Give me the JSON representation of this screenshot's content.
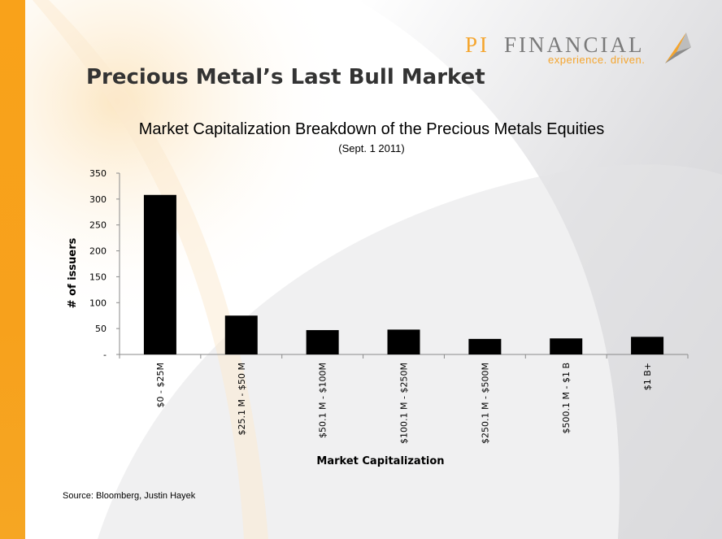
{
  "slide": {
    "title": "Precious Metal’s Last Bull Market",
    "source": "Source: Bloomberg, Justin Hayek"
  },
  "logo": {
    "name_part1": "PI",
    "name_part2": "FINANCIAL",
    "tagline": "experience. driven.",
    "icon": "pi-financial-logo-icon"
  },
  "colors": {
    "accent_orange": "#f9a21a",
    "bar": "#000000",
    "title_text": "#333333"
  },
  "chart_data": {
    "type": "bar",
    "title": "Market Capitalization Breakdown of the Precious Metals Equities",
    "subtitle": "(Sept. 1 2011)",
    "xlabel": "Market Capitalization",
    "ylabel": "# of issuers",
    "categories": [
      "$0 - $25M",
      "$25.1 M - $50 M",
      "$50.1 M - $100M",
      "$100.1 M - $250M",
      "$250.1 M - $500M",
      "$500.1 M - $1 B",
      "$1 B+"
    ],
    "values": [
      308,
      75,
      47,
      48,
      30,
      31,
      34
    ],
    "ylim": [
      0,
      350
    ],
    "yticks": [
      0,
      50,
      100,
      150,
      200,
      250,
      300,
      350
    ],
    "ytick_labels": [
      "-",
      "50",
      "100",
      "150",
      "200",
      "250",
      "300",
      "350"
    ],
    "grid": false,
    "legend": "none"
  }
}
